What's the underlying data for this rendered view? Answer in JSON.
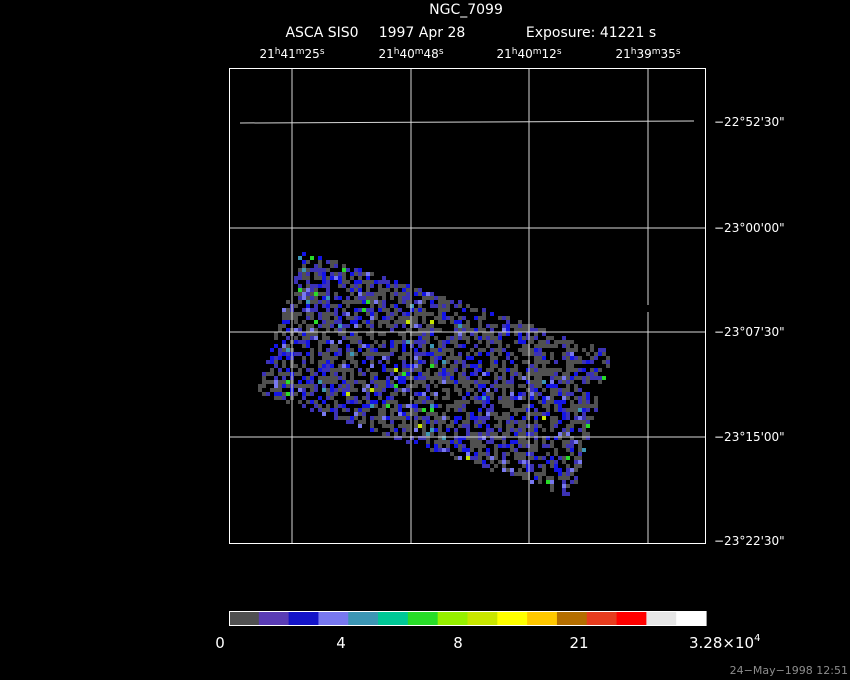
{
  "header": {
    "object": "NGC_7099",
    "instrument": "ASCA SIS0",
    "date": "1997 Apr 28",
    "exposure": "Exposure: 41221 s"
  },
  "chart_data": {
    "type": "heatmap",
    "title": "NGC_7099",
    "subtitle": "ASCA SIS0   1997 Apr 28   Exposure: 41221 s",
    "x_ticks": [
      {
        "h": "21",
        "m": "41",
        "s": "25"
      },
      {
        "h": "21",
        "m": "40",
        "s": "48"
      },
      {
        "h": "21",
        "m": "40",
        "s": "12"
      },
      {
        "h": "21",
        "m": "39",
        "s": "35"
      }
    ],
    "y_ticks": [
      "−22°52'30\"",
      "−23°00'00\"",
      "−23°07'30\"",
      "−23°15'00\"",
      "−23°22'30\""
    ],
    "grid": true,
    "colorbar": {
      "colors": [
        "#505050",
        "#5a3cb4",
        "#1414c8",
        "#7878f0",
        "#3c96b4",
        "#00c896",
        "#28dc28",
        "#96f000",
        "#c8e600",
        "#ffff00",
        "#ffc800",
        "#b46e00",
        "#e63c1e",
        "#ff0000",
        "#e6e6e6",
        "#ffffff"
      ],
      "tick_labels": [
        "0",
        "4",
        "8",
        "21"
      ],
      "max_base": "3.28×10",
      "max_exp": "4"
    }
  },
  "footer": {
    "timestamp": "24−May−1998 12:51"
  }
}
